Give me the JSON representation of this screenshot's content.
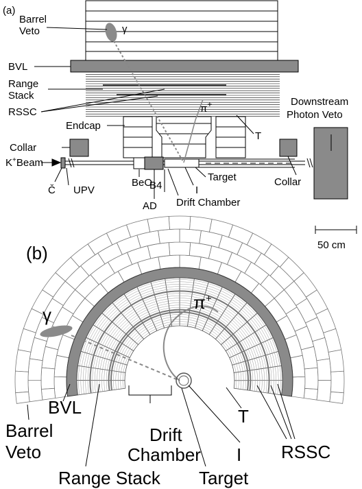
{
  "panel_a": {
    "label": "(a)",
    "barrel_veto": [
      "Barrel",
      "Veto"
    ],
    "gamma": "γ",
    "bvl": "BVL",
    "range_stack": [
      "Range",
      "Stack"
    ],
    "rssc": "RSSC",
    "pi": {
      "base": "π",
      "sup": "+"
    },
    "endcap": "Endcap",
    "t": "T",
    "downstream": [
      "Downstream",
      "Photon Veto"
    ],
    "collar_left": "Collar",
    "collar_right": "Collar",
    "beam": {
      "base": "K",
      "sup": "+",
      "rest": "Beam"
    },
    "cherenkov": "Č",
    "upv": "UPV",
    "beo": "BeO",
    "b4": "B4",
    "ad": "AD",
    "i": "I",
    "target": "Target",
    "drift_chamber": "Drift Chamber",
    "scale": "50 cm"
  },
  "panel_b": {
    "label": "(b)",
    "pi": {
      "base": "π",
      "sup": "+"
    },
    "gamma": "γ",
    "bvl": "BVL",
    "barrel_veto": [
      "Barrel",
      "Veto"
    ],
    "range_stack": "Range Stack",
    "drift_chamber": [
      "Drift",
      "Chamber"
    ],
    "t": "T",
    "i": "I",
    "rssc": "RSSC",
    "target": "Target"
  }
}
